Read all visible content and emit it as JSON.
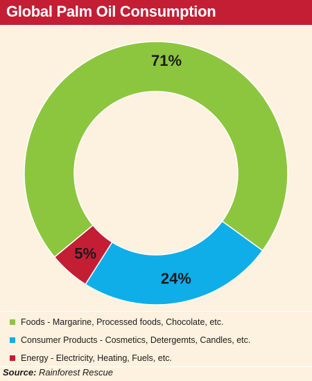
{
  "title": "Global Palm Oil Consumption",
  "colors": {
    "title_bar": "#c41e35",
    "background": "#fdf1df",
    "foods": "#8cc63f",
    "consumer": "#0faee8",
    "energy": "#c41e35"
  },
  "chart_data": {
    "type": "pie",
    "donut": true,
    "title": "Global Palm Oil Consumption",
    "slices": [
      {
        "label": "Foods - Margarine, Processed foods, Chocolate, etc.",
        "value": 71,
        "display": "71%",
        "color": "#8cc63f"
      },
      {
        "label": "Consumer Products - Cosmetics, Detergemts, Candles, etc.",
        "value": 24,
        "display": "24%",
        "color": "#0faee8"
      },
      {
        "label": "Energy - Electricity, Heating, Fuels, etc.",
        "value": 5,
        "display": "5%",
        "color": "#c41e35"
      }
    ],
    "legend_position": "bottom"
  },
  "source": {
    "prefix": "Source:",
    "text": "Rainforest Rescue"
  }
}
